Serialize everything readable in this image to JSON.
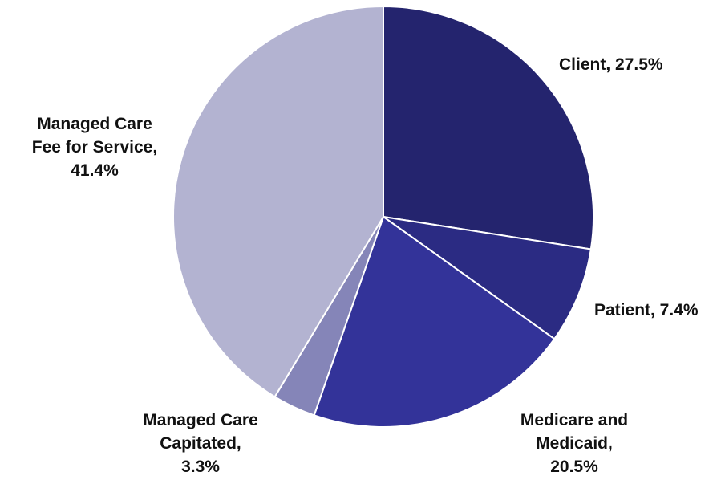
{
  "chart_data": {
    "type": "pie",
    "title": "",
    "slices": [
      {
        "label": "Client",
        "value": 27.5,
        "label_lines": [
          "Client, 27.5%"
        ],
        "color": "#24246e",
        "label_anchor": "start"
      },
      {
        "label": "Patient",
        "value": 7.4,
        "label_lines": [
          "Patient, 7.4%"
        ],
        "color": "#2b2b83",
        "label_anchor": "start"
      },
      {
        "label": "Medicare and Medicaid",
        "value": 20.5,
        "label_lines": [
          "Medicare and",
          "Medicaid,",
          "20.5%"
        ],
        "color": "#333399",
        "label_anchor": "middle"
      },
      {
        "label": "Managed Care Capitated",
        "value": 3.3,
        "label_lines": [
          "Managed Care",
          "Capitated,",
          "3.3%"
        ],
        "color": "#8585b8",
        "label_anchor": "middle"
      },
      {
        "label": "Managed Care Fee for Service",
        "value": 41.4,
        "label_lines": [
          "Managed Care",
          "Fee for Service,",
          "41.4%"
        ],
        "color": "#b3b3d1",
        "label_anchor": "middle"
      }
    ],
    "start_angle": "12 o'clock",
    "direction": "clockwise",
    "legend": "none",
    "slice_border_color": "#ffffff"
  }
}
